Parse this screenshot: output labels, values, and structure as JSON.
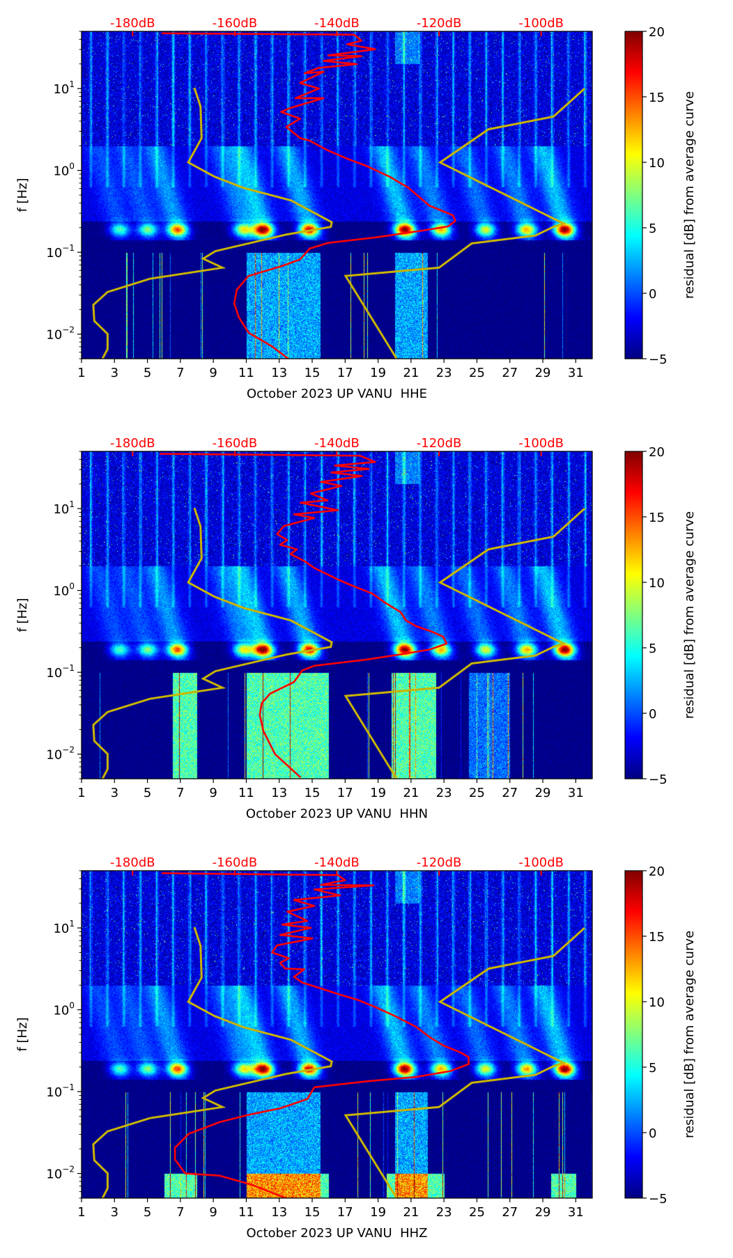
{
  "chart_data": [
    {
      "type": "heatmap",
      "xlabel": "October 2023 UP VANU  HHE",
      "ylabel": "f [Hz]",
      "xlim": [
        1,
        32
      ],
      "ylim": [
        0.005,
        50
      ],
      "yscale": "log",
      "xticks": [
        "1",
        "3",
        "5",
        "7",
        "9",
        "11",
        "13",
        "15",
        "17",
        "19",
        "21",
        "23",
        "25",
        "27",
        "29",
        "31"
      ],
      "yticks": [
        {
          "base": "10",
          "exp": "1",
          "value": 10
        },
        {
          "base": "10",
          "exp": "0",
          "value": 1
        },
        {
          "base": "10",
          "exp": "−1",
          "value": 0.1
        },
        {
          "base": "10",
          "exp": "−2",
          "value": 0.01
        }
      ],
      "top_axis": {
        "range_db": [
          -190,
          -90
        ],
        "ticks": [
          {
            "label": "-180dB",
            "value": -180
          },
          {
            "label": "-160dB",
            "value": -160
          },
          {
            "label": "-140dB",
            "value": -140
          },
          {
            "label": "-120dB",
            "value": -120
          },
          {
            "label": "-100dB",
            "value": -100
          }
        ]
      },
      "colorbar": {
        "label": "residual [dB] from average curve",
        "range": [
          -5,
          20
        ],
        "ticks": [
          "20",
          "15",
          "10",
          "5",
          "0",
          "−5"
        ]
      },
      "red_curve_color": "#ff0000",
      "model_curve_color": "#c8b400",
      "red_curve": [
        [
          -174.3,
          47.3
        ],
        [
          -136.6,
          45.5
        ],
        [
          -135.2,
          38.4
        ],
        [
          -138.0,
          34.7
        ],
        [
          -132.5,
          30.2
        ],
        [
          -141.7,
          25.5
        ],
        [
          -135.2,
          24.9
        ],
        [
          -142.6,
          21.8
        ],
        [
          -136.1,
          19.9
        ],
        [
          -143.5,
          17.9
        ],
        [
          -146.3,
          15.4
        ],
        [
          -142.6,
          16.0
        ],
        [
          -147.2,
          11.7
        ],
        [
          -143.5,
          10.0
        ],
        [
          -148.1,
          7.64
        ],
        [
          -142.6,
          7.64
        ],
        [
          -149.0,
          5.83
        ],
        [
          -150.9,
          5.19
        ],
        [
          -147.2,
          4.28
        ],
        [
          -149.9,
          3.39
        ],
        [
          -147.2,
          2.48
        ],
        [
          -145.3,
          2.3
        ],
        [
          -141.7,
          1.75
        ],
        [
          -138.0,
          1.39
        ],
        [
          -134.3,
          1.14
        ],
        [
          -129.7,
          0.838
        ],
        [
          -126.0,
          0.614
        ],
        [
          -121.9,
          0.371
        ],
        [
          -117.3,
          0.283
        ],
        [
          -116.8,
          0.242
        ],
        [
          -118.2,
          0.207
        ],
        [
          -123.2,
          0.184
        ],
        [
          -132.4,
          0.152
        ],
        [
          -141.7,
          0.13
        ],
        [
          -145.3,
          0.111
        ],
        [
          -147.2,
          0.0817
        ],
        [
          -150.9,
          0.0673
        ],
        [
          -157.3,
          0.0513
        ],
        [
          -159.6,
          0.0348
        ],
        [
          -160.1,
          0.0236
        ],
        [
          -159.2,
          0.016
        ],
        [
          -157.3,
          0.0104
        ],
        [
          -152.7,
          0.00708
        ],
        [
          -149.5,
          0.005
        ]
      ],
      "low_noise_model": [
        [
          -167.9,
          10.2
        ],
        [
          -166.7,
          6.05
        ],
        [
          -166.5,
          2.48
        ],
        [
          -169.1,
          1.25
        ],
        [
          -164.0,
          0.84
        ],
        [
          -158.2,
          0.61
        ],
        [
          -149.0,
          0.43
        ],
        [
          -141.0,
          0.233
        ],
        [
          -141.2,
          0.204
        ],
        [
          -150.0,
          0.164
        ],
        [
          -163.8,
          0.103
        ],
        [
          -166.2,
          0.0835
        ],
        [
          -162.4,
          0.0647
        ],
        [
          -176.6,
          0.0474
        ],
        [
          -184.9,
          0.0327
        ],
        [
          -187.7,
          0.0227
        ],
        [
          -187.5,
          0.0145
        ],
        [
          -184.9,
          0.01005
        ],
        [
          -184.9,
          0.00656
        ],
        [
          -185.9,
          0.005
        ]
      ],
      "high_noise_model": [
        [
          -91.5,
          10
        ],
        [
          -97.6,
          4.54
        ],
        [
          -110.3,
          3.18
        ],
        [
          -119.8,
          1.25
        ],
        [
          -95.6,
          0.224
        ],
        [
          -97.6,
          0.204
        ],
        [
          -101.1,
          0.16
        ],
        [
          -113.6,
          0.128
        ],
        [
          -120.0,
          0.0647
        ],
        [
          -138.3,
          0.0513
        ],
        [
          -128.3,
          0.005
        ]
      ]
    },
    {
      "type": "heatmap",
      "xlabel": "October 2023 UP VANU  HHN",
      "ylabel": "f [Hz]",
      "xlim": [
        1,
        32
      ],
      "ylim": [
        0.005,
        50
      ],
      "yscale": "log",
      "xticks": [
        "1",
        "3",
        "5",
        "7",
        "9",
        "11",
        "13",
        "15",
        "17",
        "19",
        "21",
        "23",
        "25",
        "27",
        "29",
        "31"
      ],
      "yticks": [
        {
          "base": "10",
          "exp": "1",
          "value": 10
        },
        {
          "base": "10",
          "exp": "0",
          "value": 1
        },
        {
          "base": "10",
          "exp": "−1",
          "value": 0.1
        },
        {
          "base": "10",
          "exp": "−2",
          "value": 0.01
        }
      ],
      "top_axis": {
        "range_db": [
          -190,
          -90
        ],
        "ticks": [
          {
            "label": "-180dB",
            "value": -180
          },
          {
            "label": "-160dB",
            "value": -160
          },
          {
            "label": "-140dB",
            "value": -140
          },
          {
            "label": "-120dB",
            "value": -120
          },
          {
            "label": "-100dB",
            "value": -100
          }
        ]
      },
      "colorbar": {
        "label": "residual [dB] from average curve",
        "range": [
          -5,
          20
        ],
        "ticks": [
          "20",
          "15",
          "10",
          "5",
          "0",
          "−5"
        ]
      },
      "red_curve_color": "#ff0000",
      "model_curve_color": "#c8b400",
      "red_curve": [
        [
          -174.7,
          46.7
        ],
        [
          -135.5,
          44.3
        ],
        [
          -132.5,
          37.1
        ],
        [
          -140.4,
          33.6
        ],
        [
          -133.8,
          30.5
        ],
        [
          -141.1,
          27.6
        ],
        [
          -135.1,
          25.0
        ],
        [
          -143.1,
          21.2
        ],
        [
          -139.1,
          18.9
        ],
        [
          -145.1,
          15.3
        ],
        [
          -141.8,
          12.6
        ],
        [
          -147.1,
          11.8
        ],
        [
          -139.8,
          9.55
        ],
        [
          -148.4,
          8.5
        ],
        [
          -144.4,
          7.7
        ],
        [
          -150.4,
          6.12
        ],
        [
          -151.7,
          4.87
        ],
        [
          -149.7,
          4.13
        ],
        [
          -151.1,
          3.62
        ],
        [
          -147.8,
          3.18
        ],
        [
          -149.1,
          2.79
        ],
        [
          -146.4,
          2.29
        ],
        [
          -144.4,
          1.88
        ],
        [
          -139.8,
          1.36
        ],
        [
          -137.1,
          1.15
        ],
        [
          -133.1,
          0.916
        ],
        [
          -130.5,
          0.705
        ],
        [
          -127.5,
          0.542
        ],
        [
          -126.5,
          0.431
        ],
        [
          -124.5,
          0.366
        ],
        [
          -121.2,
          0.31
        ],
        [
          -119.2,
          0.272
        ],
        [
          -118.5,
          0.224
        ],
        [
          -121.8,
          0.19
        ],
        [
          -127.1,
          0.167
        ],
        [
          -134.5,
          0.142
        ],
        [
          -144.4,
          0.12
        ],
        [
          -146.8,
          0.105
        ],
        [
          -148.4,
          0.0759
        ],
        [
          -153.1,
          0.0547
        ],
        [
          -154.7,
          0.0421
        ],
        [
          -155.1,
          0.0303
        ],
        [
          -154.4,
          0.0192
        ],
        [
          -152.1,
          0.00998
        ],
        [
          -147.1,
          0.00518
        ]
      ],
      "low_noise_model": [
        [
          -167.9,
          10.2
        ],
        [
          -166.7,
          6.05
        ],
        [
          -166.5,
          2.48
        ],
        [
          -169.1,
          1.25
        ],
        [
          -164.0,
          0.84
        ],
        [
          -158.2,
          0.61
        ],
        [
          -149.0,
          0.43
        ],
        [
          -141.0,
          0.233
        ],
        [
          -141.2,
          0.204
        ],
        [
          -150.0,
          0.164
        ],
        [
          -163.8,
          0.103
        ],
        [
          -166.2,
          0.0835
        ],
        [
          -162.4,
          0.0647
        ],
        [
          -176.6,
          0.0474
        ],
        [
          -184.9,
          0.0327
        ],
        [
          -187.7,
          0.0227
        ],
        [
          -187.5,
          0.0145
        ],
        [
          -184.9,
          0.01005
        ],
        [
          -184.9,
          0.00656
        ],
        [
          -185.9,
          0.005
        ]
      ],
      "high_noise_model": [
        [
          -91.5,
          10
        ],
        [
          -97.6,
          4.54
        ],
        [
          -110.3,
          3.18
        ],
        [
          -119.8,
          1.25
        ],
        [
          -95.6,
          0.224
        ],
        [
          -97.6,
          0.204
        ],
        [
          -101.1,
          0.16
        ],
        [
          -113.6,
          0.128
        ],
        [
          -120.0,
          0.0647
        ],
        [
          -138.3,
          0.0513
        ],
        [
          -128.3,
          0.005
        ]
      ]
    },
    {
      "type": "heatmap",
      "xlabel": "October 2023 UP VANU  HHZ",
      "ylabel": "f [Hz]",
      "xlim": [
        1,
        32
      ],
      "ylim": [
        0.005,
        50
      ],
      "yscale": "log",
      "xticks": [
        "1",
        "3",
        "5",
        "7",
        "9",
        "11",
        "13",
        "15",
        "17",
        "19",
        "21",
        "23",
        "25",
        "27",
        "29",
        "31"
      ],
      "yticks": [
        {
          "base": "10",
          "exp": "1",
          "value": 10
        },
        {
          "base": "10",
          "exp": "0",
          "value": 1
        },
        {
          "base": "10",
          "exp": "−1",
          "value": 0.1
        },
        {
          "base": "10",
          "exp": "−2",
          "value": 0.01
        }
      ],
      "top_axis": {
        "range_db": [
          -190,
          -90
        ],
        "ticks": [
          {
            "label": "-180dB",
            "value": -180
          },
          {
            "label": "-160dB",
            "value": -160
          },
          {
            "label": "-140dB",
            "value": -140
          },
          {
            "label": "-120dB",
            "value": -120
          },
          {
            "label": "-100dB",
            "value": -100
          }
        ]
      },
      "colorbar": {
        "label": "residual [dB] from average curve",
        "range": [
          -5,
          20
        ],
        "ticks": [
          "20",
          "15",
          "10",
          "5",
          "0",
          "−5"
        ]
      },
      "red_curve_color": "#ff0000",
      "model_curve_color": "#c8b400",
      "red_curve": [
        [
          -174.3,
          46.6
        ],
        [
          -139.8,
          44.2
        ],
        [
          -138.4,
          38.3
        ],
        [
          -143.1,
          33.6
        ],
        [
          -132.8,
          33.1
        ],
        [
          -144.4,
          29.5
        ],
        [
          -139.4,
          25.0
        ],
        [
          -148.4,
          21.9
        ],
        [
          -144.4,
          18.6
        ],
        [
          -149.7,
          15.8
        ],
        [
          -145.8,
          12.2
        ],
        [
          -150.7,
          11.0
        ],
        [
          -145.1,
          10.0
        ],
        [
          -151.1,
          8.22
        ],
        [
          -144.8,
          7.45
        ],
        [
          -151.7,
          6.12
        ],
        [
          -152.7,
          5.02
        ],
        [
          -149.4,
          4.27
        ],
        [
          -151.1,
          3.75
        ],
        [
          -150.1,
          3.18
        ],
        [
          -146.4,
          3.12
        ],
        [
          -148.4,
          2.53
        ],
        [
          -146.8,
          2.15
        ],
        [
          -143.8,
          1.88
        ],
        [
          -140.4,
          1.6
        ],
        [
          -135.8,
          1.31
        ],
        [
          -132.5,
          1.08
        ],
        [
          -128.5,
          0.831
        ],
        [
          -124.5,
          0.619
        ],
        [
          -121.8,
          0.461
        ],
        [
          -119.2,
          0.367
        ],
        [
          -115.8,
          0.301
        ],
        [
          -114.2,
          0.264
        ],
        [
          -114.2,
          0.217
        ],
        [
          -117.8,
          0.178
        ],
        [
          -124.5,
          0.151
        ],
        [
          -134.5,
          0.133
        ],
        [
          -144.4,
          0.113
        ],
        [
          -145.8,
          0.0812
        ],
        [
          -151.1,
          0.0625
        ],
        [
          -157.7,
          0.0514
        ],
        [
          -163.0,
          0.0423
        ],
        [
          -169.0,
          0.0305
        ],
        [
          -171.7,
          0.0206
        ],
        [
          -171.7,
          0.0148
        ],
        [
          -169.7,
          0.01
        ],
        [
          -163.0,
          0.0094
        ],
        [
          -156.4,
          0.0072
        ],
        [
          -149.7,
          0.0049
        ]
      ],
      "low_noise_model": [
        [
          -167.9,
          10.2
        ],
        [
          -166.7,
          6.05
        ],
        [
          -166.5,
          2.48
        ],
        [
          -169.1,
          1.25
        ],
        [
          -164.0,
          0.84
        ],
        [
          -158.2,
          0.61
        ],
        [
          -149.0,
          0.43
        ],
        [
          -141.0,
          0.233
        ],
        [
          -141.2,
          0.204
        ],
        [
          -150.0,
          0.164
        ],
        [
          -163.8,
          0.103
        ],
        [
          -166.2,
          0.0835
        ],
        [
          -162.4,
          0.0647
        ],
        [
          -176.6,
          0.0474
        ],
        [
          -184.9,
          0.0327
        ],
        [
          -187.7,
          0.0227
        ],
        [
          -187.5,
          0.0145
        ],
        [
          -184.9,
          0.01005
        ],
        [
          -184.9,
          0.00656
        ],
        [
          -185.9,
          0.005
        ]
      ],
      "high_noise_model": [
        [
          -91.5,
          10
        ],
        [
          -97.6,
          4.54
        ],
        [
          -110.3,
          3.18
        ],
        [
          -119.8,
          1.25
        ],
        [
          -95.6,
          0.224
        ],
        [
          -97.6,
          0.204
        ],
        [
          -101.1,
          0.16
        ],
        [
          -113.6,
          0.128
        ],
        [
          -120.0,
          0.0647
        ],
        [
          -138.3,
          0.0513
        ],
        [
          -128.3,
          0.005
        ]
      ]
    }
  ]
}
